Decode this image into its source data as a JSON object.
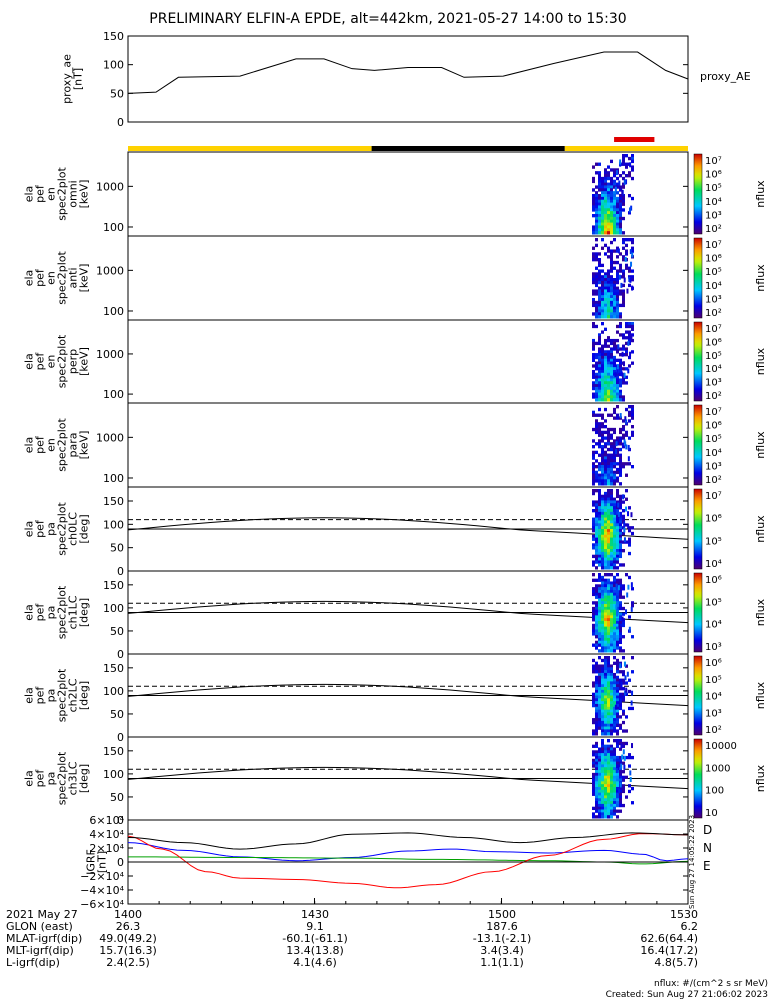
{
  "title": "PRELIMINARY ELFIN-A EPDE, alt=442km, 2021-05-27 14:00 to 15:30",
  "colors": {
    "line": "#000000",
    "status_yellow": "#ffd200",
    "status_black": "#000000",
    "status_red": "#e00000",
    "north": "#0000ff",
    "east": "#00a000",
    "down": "#ff0000"
  },
  "status_bar": [
    {
      "from": 0,
      "to": 0.435,
      "color": "yellow"
    },
    {
      "from": 0.435,
      "to": 0.78,
      "color": "black"
    },
    {
      "from": 0.78,
      "to": 1.0,
      "color": "yellow"
    }
  ],
  "science_zone": {
    "from": 0.868,
    "to": 0.94,
    "color": "red"
  },
  "chart_data": [
    {
      "type": "line",
      "name": "proxy_ae",
      "ylabel_lines": [
        "proxy_ae",
        "[nT]"
      ],
      "legend": "proxy_AE",
      "ylim": [
        0,
        150
      ],
      "yticks": [
        "150",
        "100",
        "50",
        "0"
      ],
      "x": [
        0,
        0.05,
        0.09,
        0.2,
        0.3,
        0.35,
        0.4,
        0.44,
        0.5,
        0.56,
        0.6,
        0.67,
        0.76,
        0.85,
        0.91,
        0.96,
        1.0
      ],
      "y": [
        50,
        52,
        78,
        80,
        110,
        110,
        93,
        90,
        95,
        95,
        78,
        80,
        102,
        122,
        122,
        90,
        75
      ]
    },
    {
      "type": "heatmap",
      "name": "omni",
      "ylabel_lines": [
        "ela",
        "pef",
        "en",
        "spec2plot",
        "omni",
        "[keV]"
      ],
      "yticks": [
        "1000",
        "100"
      ],
      "colorbar": {
        "label": "nflux",
        "ticks": [
          "10⁷",
          "10⁶",
          "10⁵",
          "10⁴",
          "10³",
          "10²"
        ]
      }
    },
    {
      "type": "heatmap",
      "name": "anti",
      "ylabel_lines": [
        "ela",
        "pef",
        "en",
        "spec2plot",
        "anti",
        "[keV]"
      ],
      "yticks": [
        "1000",
        "100"
      ],
      "colorbar": {
        "label": "nflux",
        "ticks": [
          "10⁷",
          "10⁶",
          "10⁵",
          "10⁴",
          "10³",
          "10²"
        ]
      }
    },
    {
      "type": "heatmap",
      "name": "perp",
      "ylabel_lines": [
        "ela",
        "pef",
        "en",
        "spec2plot",
        "perp",
        "[keV]"
      ],
      "yticks": [
        "1000",
        "100"
      ],
      "colorbar": {
        "label": "nflux",
        "ticks": [
          "10⁷",
          "10⁶",
          "10⁵",
          "10⁴",
          "10³",
          "10²"
        ]
      }
    },
    {
      "type": "heatmap",
      "name": "para",
      "ylabel_lines": [
        "ela",
        "pef",
        "en",
        "spec2plot",
        "para",
        "[keV]"
      ],
      "yticks": [
        "1000",
        "100"
      ],
      "colorbar": {
        "label": "nflux",
        "ticks": [
          "10⁷",
          "10⁶",
          "10⁵",
          "10⁴",
          "10³",
          "10²"
        ]
      }
    },
    {
      "type": "heatmap",
      "name": "ch0LC",
      "ylabel_lines": [
        "ela",
        "pef",
        "pa",
        "spec2plot",
        "ch0LC",
        "[deg]"
      ],
      "yticks": [
        "150",
        "100",
        "50",
        "0"
      ],
      "ylim": [
        0,
        180
      ],
      "colorbar": {
        "label": "nflux",
        "ticks": [
          "10⁷",
          "10⁶",
          "10⁵",
          "10⁴"
        ]
      }
    },
    {
      "type": "heatmap",
      "name": "ch1LC",
      "ylabel_lines": [
        "ela",
        "pef",
        "pa",
        "spec2plot",
        "ch1LC",
        "[deg]"
      ],
      "yticks": [
        "150",
        "100",
        "50",
        "0"
      ],
      "ylim": [
        0,
        180
      ],
      "colorbar": {
        "label": "nflux",
        "ticks": [
          "10⁶",
          "10⁵",
          "10⁴",
          "10³"
        ]
      }
    },
    {
      "type": "heatmap",
      "name": "ch2LC",
      "ylabel_lines": [
        "ela",
        "pef",
        "pa",
        "spec2plot",
        "ch2LC",
        "[deg]"
      ],
      "yticks": [
        "150",
        "100",
        "50",
        "0"
      ],
      "ylim": [
        0,
        180
      ],
      "colorbar": {
        "label": "nflux",
        "ticks": [
          "10⁶",
          "10⁵",
          "10⁴",
          "10³",
          "10²"
        ]
      }
    },
    {
      "type": "heatmap",
      "name": "ch3LC",
      "ylabel_lines": [
        "ela",
        "pef",
        "pa",
        "spec2plot",
        "ch3LC",
        "[deg]"
      ],
      "yticks": [
        "150",
        "100",
        "50",
        "0"
      ],
      "ylim": [
        0,
        180
      ],
      "colorbar": {
        "label": "nflux",
        "ticks": [
          "10000",
          "1000",
          "100",
          "10"
        ]
      }
    },
    {
      "type": "line",
      "name": "IGRF",
      "ylabel_lines": [
        "IGRF",
        "[nT]"
      ],
      "ylim": [
        -65000,
        65000
      ],
      "yticks": [
        "6×10⁴",
        "4×10⁴",
        "2×10⁴",
        "0",
        "−2×10⁴",
        "−4×10⁴",
        "−6×10⁴"
      ],
      "series": [
        {
          "name": "N",
          "color": "north",
          "x": [
            0,
            0.1,
            0.2,
            0.3,
            0.4,
            0.5,
            0.58,
            0.65,
            0.75,
            0.85,
            0.92,
            0.96,
            1.0
          ],
          "y": [
            30000,
            18000,
            8000,
            2000,
            7000,
            17000,
            20000,
            16000,
            14000,
            18000,
            12000,
            2000,
            5000
          ]
        },
        {
          "name": "E",
          "color": "east",
          "x": [
            0,
            0.2,
            0.4,
            0.55,
            0.75,
            0.85,
            0.92,
            1.0
          ],
          "y": [
            8000,
            7000,
            6000,
            4000,
            2000,
            0,
            -3000,
            1000
          ]
        },
        {
          "name": "D",
          "color": "down",
          "x": [
            0,
            0.06,
            0.14,
            0.2,
            0.3,
            0.4,
            0.48,
            0.55,
            0.65,
            0.75,
            0.85,
            0.92,
            1.0
          ],
          "y": [
            40000,
            20000,
            -15000,
            -25000,
            -27000,
            -33000,
            -40000,
            -35000,
            -15000,
            10000,
            35000,
            44000,
            42000
          ]
        },
        {
          "name": "total",
          "color": "line",
          "x": [
            0,
            0.1,
            0.2,
            0.3,
            0.4,
            0.5,
            0.6,
            0.7,
            0.8,
            0.9,
            1.0
          ],
          "y": [
            38000,
            30000,
            20000,
            28000,
            43000,
            45000,
            38000,
            30000,
            38000,
            45000,
            42000
          ]
        }
      ],
      "legend": [
        "D",
        "N",
        "E"
      ],
      "side_note": "Sun Aug 27 14:05:22 2023"
    }
  ],
  "time_axis": {
    "labels": [
      "1400",
      "1430",
      "1500",
      "1530"
    ],
    "label_fractions": [
      0,
      0.333,
      0.667,
      1.0
    ]
  },
  "ephemeris": [
    {
      "label": "2021 May 27",
      "values": [
        "1400",
        "1430",
        "1500",
        "1530"
      ]
    },
    {
      "label": "GLON (east)",
      "values": [
        "26.3",
        "9.1",
        "187.6",
        "6.2"
      ]
    },
    {
      "label": "MLAT-igrf(dip)",
      "values": [
        "49.0(49.2)",
        "-60.1(-61.1)",
        "-13.1(-2.1)",
        "62.6(64.4)"
      ]
    },
    {
      "label": "MLT-igrf(dip)",
      "values": [
        "15.7(16.3)",
        "13.4(13.8)",
        "3.4(3.4)",
        "16.4(17.2)"
      ]
    },
    {
      "label": "L-igrf(dip)",
      "values": [
        "2.4(2.5)",
        "4.1(4.6)",
        "1.1(1.1)",
        "4.8(5.7)"
      ]
    }
  ],
  "footnote_units": "nflux: #/(cm^2 s sr MeV)",
  "footnote_created": "Created: Sun Aug 27 21:06:02 2023"
}
